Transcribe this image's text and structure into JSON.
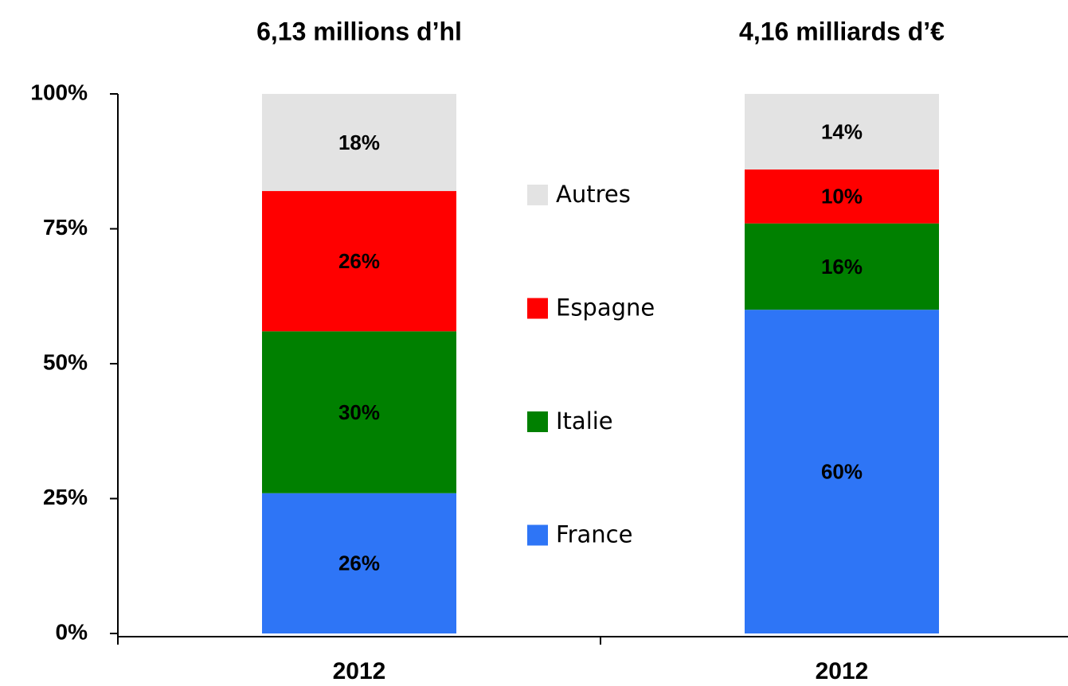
{
  "chart_data": {
    "type": "stacked_bar",
    "column_titles": [
      "6,13 millions d’hl",
      "4,16 milliards d’€"
    ],
    "categories": [
      "2012",
      "2012"
    ],
    "series": [
      {
        "name": "France",
        "color": "#2e75f6",
        "values": [
          26,
          60
        ],
        "value_labels": [
          "26%",
          "60%"
        ]
      },
      {
        "name": "Italie",
        "color": "#008000",
        "values": [
          30,
          16
        ],
        "value_labels": [
          "30%",
          "16%"
        ]
      },
      {
        "name": "Espagne",
        "color": "#ff0000",
        "values": [
          26,
          10
        ],
        "value_labels": [
          "26%",
          "10%"
        ]
      },
      {
        "name": "Autres",
        "color": "#e3e3e3",
        "values": [
          18,
          14
        ],
        "value_labels": [
          "18%",
          "14%"
        ]
      }
    ],
    "ylim": [
      0,
      100
    ],
    "yticks": [
      {
        "value": 0,
        "label": "0%"
      },
      {
        "value": 25,
        "label": "25%"
      },
      {
        "value": 50,
        "label": "50%"
      },
      {
        "value": 75,
        "label": "75%"
      },
      {
        "value": 100,
        "label": "100%"
      }
    ],
    "legend": "center"
  }
}
